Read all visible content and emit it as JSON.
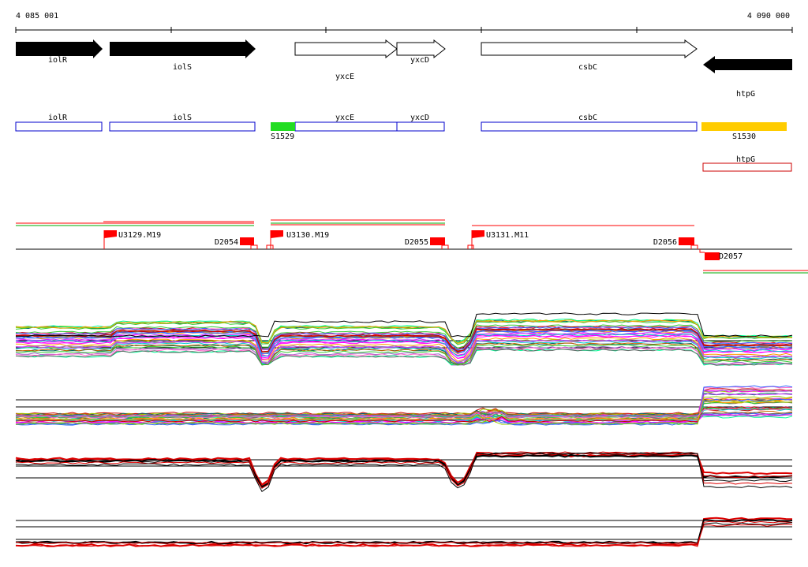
{
  "ruler": {
    "start_label": "4 085 001",
    "end_label": "4 090 000"
  },
  "genes_top": [
    {
      "id": "gene-iolR",
      "label": "iolR",
      "strand": "+",
      "style": "filled"
    },
    {
      "id": "gene-iolS",
      "label": "iolS",
      "strand": "+",
      "style": "filled"
    },
    {
      "id": "gene-yxcE",
      "label": "yxcE",
      "strand": "+",
      "style": "outline"
    },
    {
      "id": "gene-yxcD",
      "label": "yxcD",
      "strand": "+",
      "style": "outline"
    },
    {
      "id": "gene-csbC",
      "label": "csbC",
      "strand": "+",
      "style": "outline"
    },
    {
      "id": "gene-htpG",
      "label": "htpG",
      "strand": "-",
      "style": "filled"
    }
  ],
  "annotation_boxes": [
    {
      "id": "box-iolR",
      "label": "iolR",
      "color": "#0000cc"
    },
    {
      "id": "box-iolS",
      "label": "iolS",
      "color": "#0000cc"
    },
    {
      "id": "box-yxcE",
      "label": "yxcE",
      "color": "#0000cc"
    },
    {
      "id": "box-yxcD",
      "label": "yxcD",
      "color": "#0000cc"
    },
    {
      "id": "box-csbC",
      "label": "csbC",
      "color": "#0000cc"
    }
  ],
  "segments": [
    {
      "id": "seg-S1529",
      "label": "S1529",
      "color": "#22dd22"
    },
    {
      "id": "seg-S1530",
      "label": "S1530",
      "color": "#ffcc00"
    }
  ],
  "htpG_box": {
    "label": "htpG",
    "color": "#cc0000"
  },
  "transcription_units": [
    {
      "id": "tu-U3129",
      "label": "U3129.M19",
      "color": "#ff0000"
    },
    {
      "id": "tu-U3130",
      "label": "U3130.M19",
      "color": "#ff0000"
    },
    {
      "id": "tu-U3131",
      "label": "U3131.M11",
      "color": "#ff0000"
    }
  ],
  "terminators": [
    {
      "id": "term-D2054",
      "label": "D2054",
      "color": "#ff0000"
    },
    {
      "id": "term-D2055",
      "label": "D2055",
      "color": "#ff0000"
    },
    {
      "id": "term-D2056",
      "label": "D2056",
      "color": "#ff0000"
    },
    {
      "id": "term-D2057",
      "label": "D2057",
      "color": "#ff0000"
    }
  ],
  "colors": {
    "gene_fill": "#000000",
    "box_blue": "#0000cc",
    "tu_red": "#ff0000",
    "tu_green": "#00aa00",
    "profile_red": "#dd0000",
    "profile_black": "#000000"
  },
  "profile_palette": [
    "#ff00ff",
    "#00cccc",
    "#33cc33",
    "#ff9900",
    "#3366ff",
    "#cc0000",
    "#9966cc",
    "#99cc00",
    "#ff66cc",
    "#006666",
    "#cc6600",
    "#666666",
    "#00ff99",
    "#cc33ff"
  ]
}
